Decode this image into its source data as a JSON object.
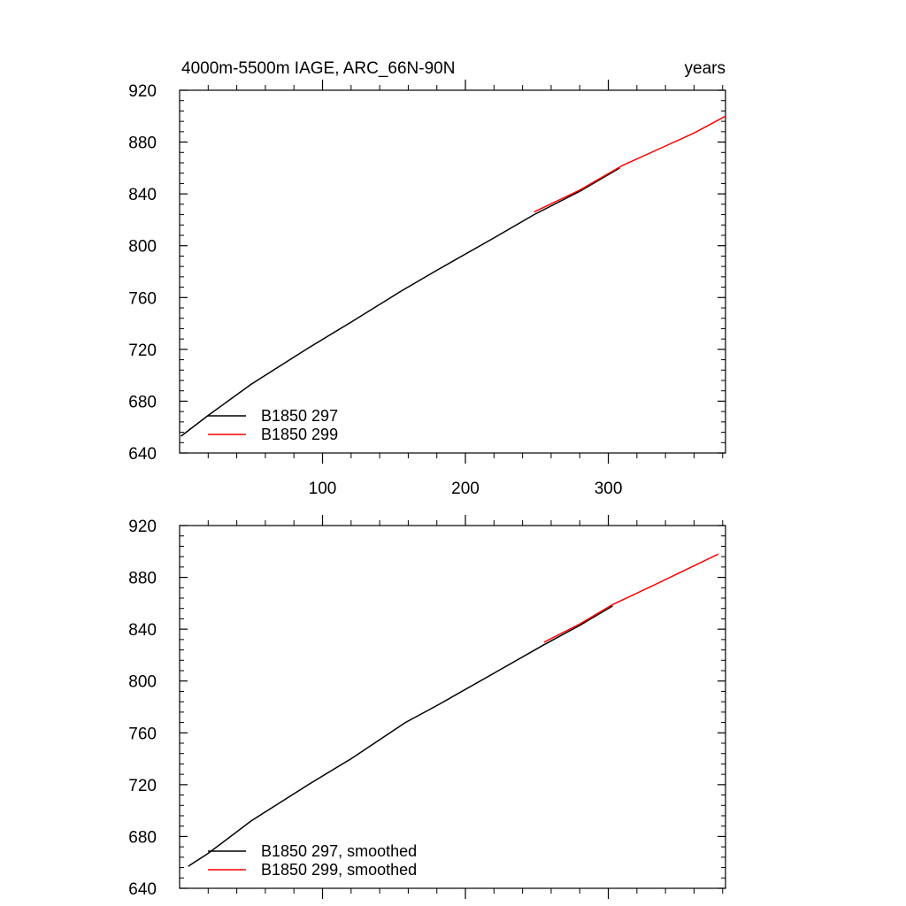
{
  "chart_data": [
    {
      "type": "line",
      "title": "4000m-5500m IAGE, ARC_66N-90N",
      "title_right": "years",
      "xlim": [
        0,
        382
      ],
      "ylim": [
        640,
        920
      ],
      "yticks": [
        640,
        680,
        720,
        760,
        800,
        840,
        880,
        920
      ],
      "xticks": [
        100,
        200,
        300
      ],
      "xticks_shown": true,
      "legend_position": "bottom-left",
      "series": [
        {
          "name": "B1850 297",
          "color": "#000000",
          "x": [
            1,
            20,
            50,
            90,
            120,
            155,
            180,
            220,
            248,
            280,
            308
          ],
          "y": [
            653,
            669,
            693,
            721,
            741,
            765,
            781,
            806,
            824,
            842,
            860
          ]
        },
        {
          "name": "B1850 299",
          "color": "#ff0000",
          "x": [
            248,
            280,
            310,
            340,
            360,
            382
          ],
          "y": [
            826,
            843,
            862,
            877,
            887,
            900
          ]
        }
      ]
    },
    {
      "type": "line",
      "xlim": [
        0,
        382
      ],
      "ylim": [
        640,
        920
      ],
      "yticks": [
        640,
        680,
        720,
        760,
        800,
        840,
        880,
        920
      ],
      "xticks": [
        100,
        200,
        300
      ],
      "xticks_shown": false,
      "legend_position": "bottom-left",
      "series": [
        {
          "name": "B1850 297, smoothed",
          "color": "#000000",
          "x": [
            6,
            20,
            50,
            90,
            120,
            158,
            180,
            220,
            255,
            280,
            303
          ],
          "y": [
            657,
            667,
            692,
            720,
            740,
            768,
            781,
            806,
            828,
            843,
            858
          ]
        },
        {
          "name": "B1850 299, smoothed",
          "color": "#ff0000",
          "x": [
            255,
            280,
            303,
            330,
            360,
            377
          ],
          "y": [
            830,
            844,
            859,
            873,
            889,
            898
          ]
        }
      ]
    }
  ]
}
